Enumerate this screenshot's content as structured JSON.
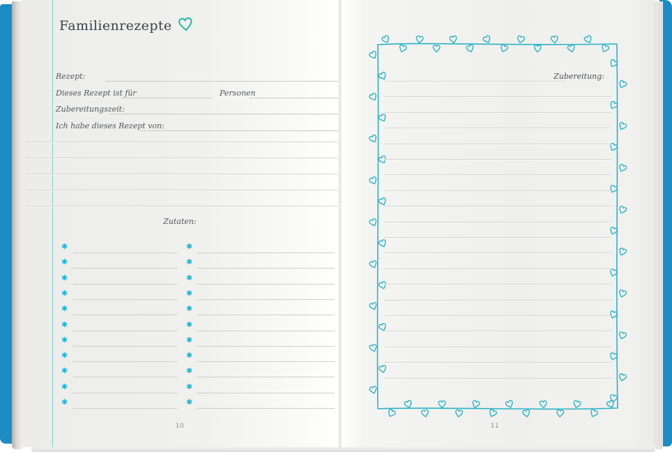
{
  "left_page": {
    "title": "Familienrezepte",
    "fields": {
      "recipe": "Rezept:",
      "serves": "Dieses Rezept ist für",
      "serves_unit": "Personen",
      "prep_time": "Zubereitungszeit:",
      "source": "Ich habe dieses Rezept von:"
    },
    "notes_lines": 5,
    "ingredients": {
      "heading": "Zutaten:",
      "bullet": "✱",
      "rows": 11,
      "columns": 2
    },
    "page_number": "10"
  },
  "right_page": {
    "preparation_label": "Zubereitung:",
    "lines": 20,
    "page_number": "11"
  },
  "colors": {
    "cover_blue": "#1d8cc3",
    "border_teal": "#2ab2c6",
    "title_heart_teal": "#2cb4a8",
    "asterisk_cyan": "#1fb4d2",
    "margin_line_teal": "#7fcad2"
  },
  "icons": {
    "title_heart": "heart-outline-icon",
    "frame": "heart-vine-border",
    "ingredient_bullet": "asterisk-icon"
  }
}
